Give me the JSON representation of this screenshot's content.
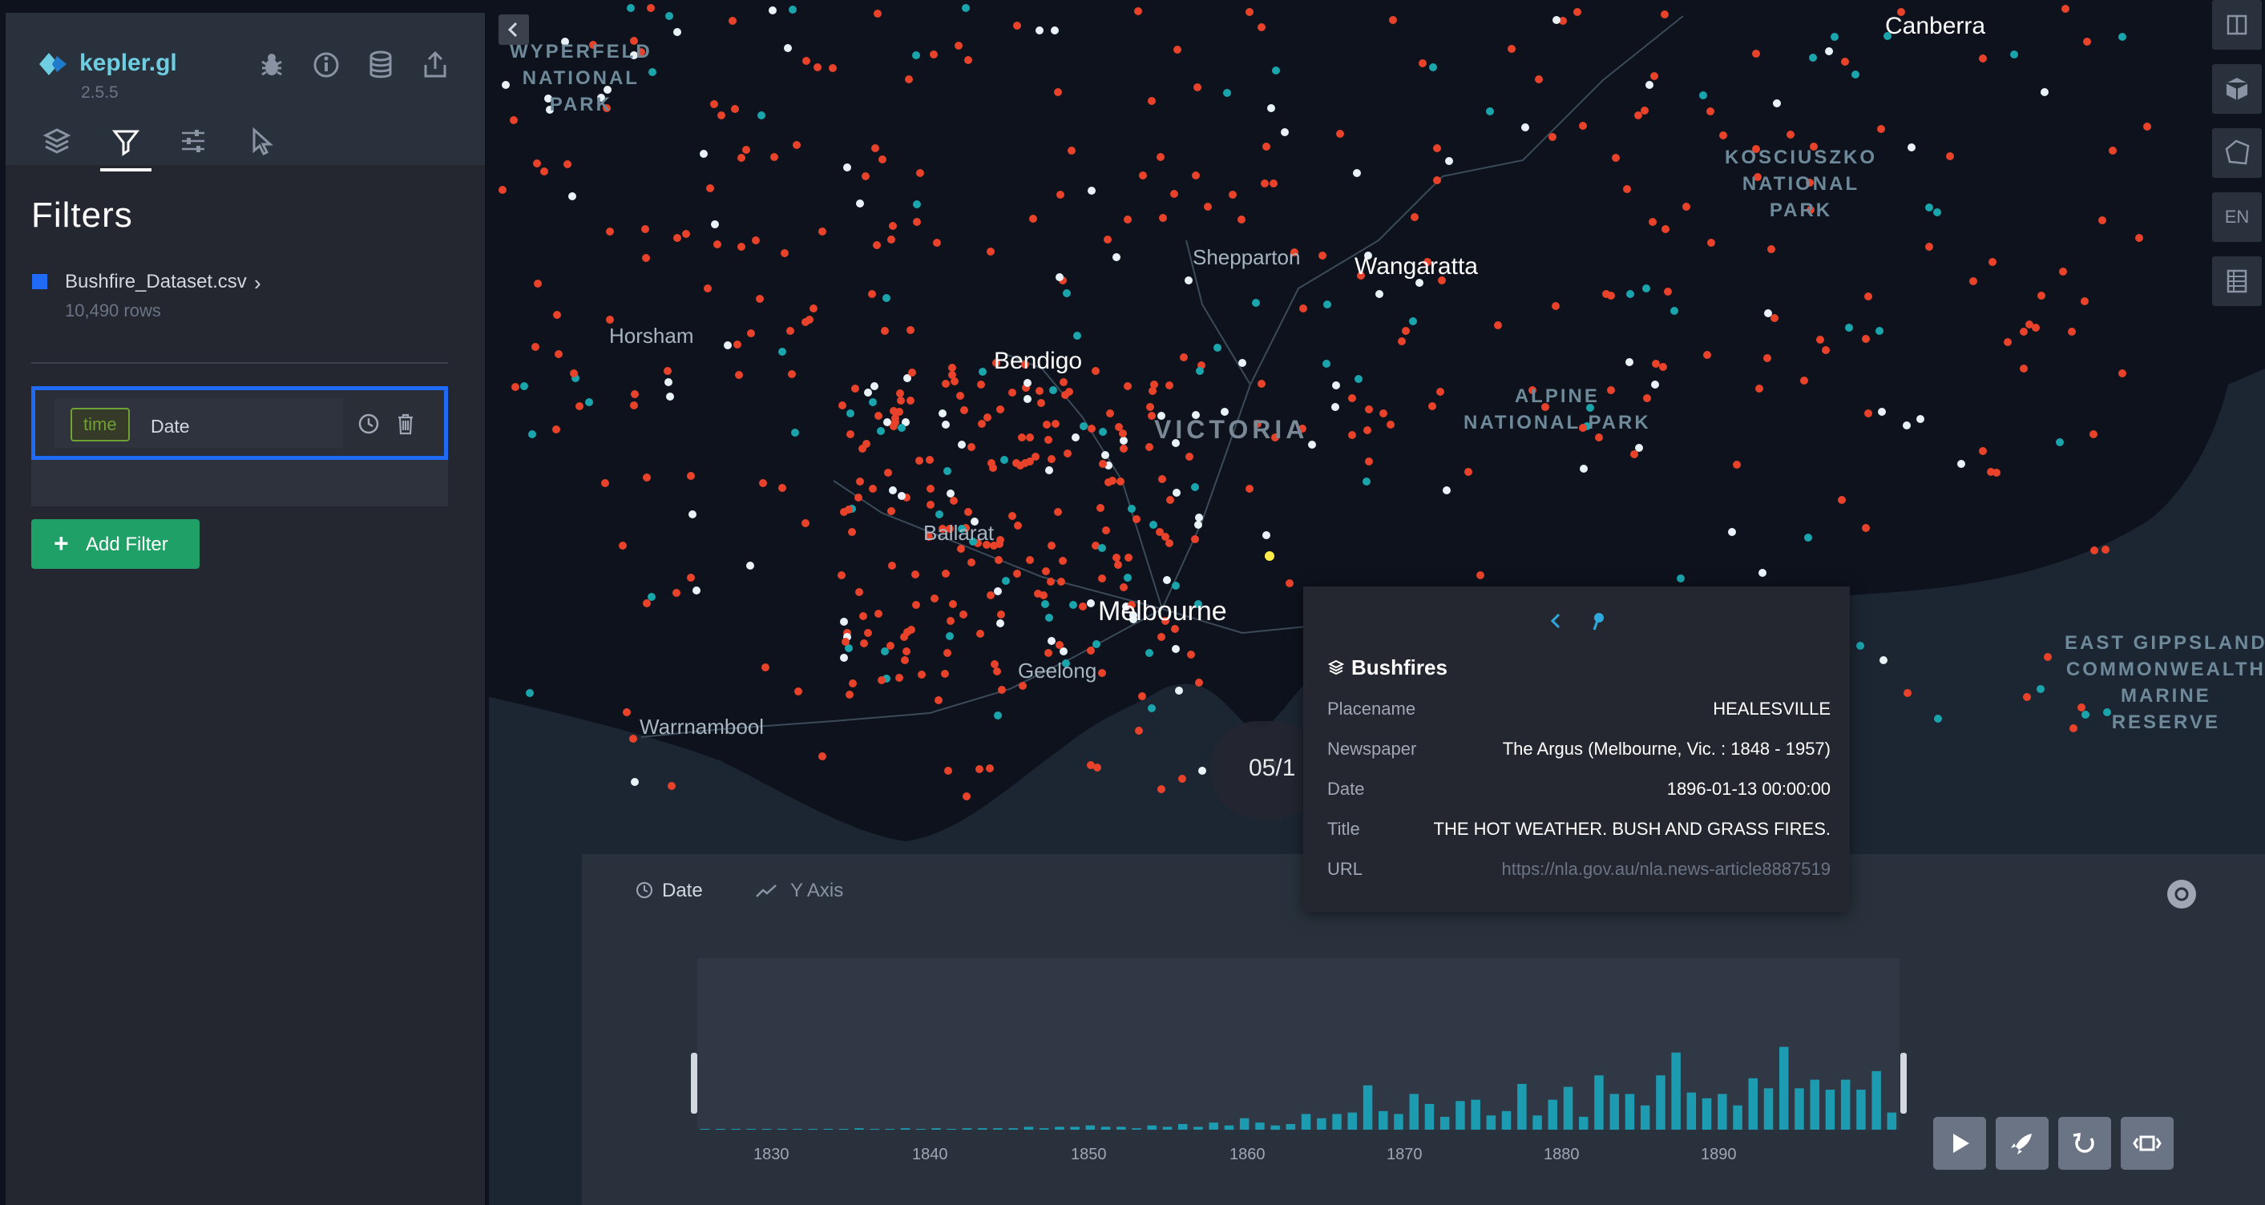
{
  "app": {
    "name": "kepler.gl",
    "version": "2.5.5"
  },
  "sidebar": {
    "tools": [
      "bug-icon",
      "info-icon",
      "database-icon",
      "share-icon"
    ],
    "tabs": [
      "layers",
      "filters",
      "interactions",
      "base-map"
    ],
    "active_tab": "filters",
    "section_title": "Filters",
    "dataset": {
      "name": "Bushfire_Dataset.csv",
      "rows": "10,490 rows",
      "color": "#1f6bf6"
    },
    "filter": {
      "type_badge": "time",
      "field": "Date"
    },
    "add_filter_label": "Add Filter"
  },
  "map": {
    "labels": {
      "canberra": "Canberra",
      "wyperfeld": [
        "WYPERFELD",
        "NATIONAL",
        "PARK"
      ],
      "kosciuszko": [
        "KOSCIUSZKO",
        "NATIONAL",
        "PARK"
      ],
      "alpine": [
        "ALPINE",
        "NATIONAL PARK"
      ],
      "east_gippsland": [
        "EAST GIPPSLAND",
        "COMMONWEALTH",
        "MARINE",
        "RESERVE"
      ],
      "shepparton": "Shepparton",
      "wangaratta": "Wangaratta",
      "horsham": "Horsham",
      "bendigo": "Bendigo",
      "victoria": "VICTORIA",
      "ballarat": "Ballarat",
      "melbourne": "Melbourne",
      "geelong": "Geelong",
      "warrnambool": "Warrnambool"
    },
    "point_colors": {
      "red": "#e8432a",
      "teal": "#1aa5ad",
      "white": "#e9f3f7",
      "yellow": "#ffeb4a"
    }
  },
  "map_controls": {
    "language": "EN"
  },
  "tooltip": {
    "layer": "Bushfires",
    "rows": [
      {
        "key": "Placename",
        "value": "HEALESVILLE"
      },
      {
        "key": "Newspaper",
        "value": "The Argus (Melbourne, Vic. : 1848 - 1957)"
      },
      {
        "key": "Date",
        "value": "1896-01-13 00:00:00"
      },
      {
        "key": "Title",
        "value": "THE HOT WEATHER. BUSH AND GRASS FIRES."
      },
      {
        "key": "URL",
        "value": "https://nla.gov.au/nla.news-article8887519"
      }
    ]
  },
  "time_bubble": "05/1",
  "timeline": {
    "field_tab": "Date",
    "axis_tab": "Y Axis",
    "years": [
      "1830",
      "1840",
      "1850",
      "1860",
      "1870",
      "1880",
      "1890"
    ]
  },
  "chart_data": {
    "type": "bar",
    "title": "",
    "xlabel": "",
    "ylabel": "",
    "x": [
      1827,
      1828,
      1829,
      1830,
      1831,
      1832,
      1833,
      1834,
      1835,
      1836,
      1837,
      1838,
      1839,
      1840,
      1841,
      1842,
      1843,
      1844,
      1845,
      1846,
      1847,
      1848,
      1849,
      1850,
      1851,
      1852,
      1853,
      1854,
      1855,
      1856,
      1857,
      1858,
      1859,
      1860,
      1861,
      1862,
      1863,
      1864,
      1865,
      1866,
      1867,
      1868,
      1869,
      1870,
      1871,
      1872,
      1873,
      1874,
      1875,
      1876,
      1877,
      1878,
      1879,
      1880,
      1881,
      1882,
      1883,
      1884,
      1885,
      1886,
      1887,
      1888,
      1889,
      1890,
      1891,
      1892,
      1893,
      1894,
      1895,
      1896,
      1897,
      1898,
      1899,
      1900,
      1901,
      1902,
      1903,
      1904
    ],
    "values": [
      0,
      0,
      0,
      0,
      0,
      0,
      0,
      0,
      0,
      0,
      1,
      0,
      0,
      1,
      0,
      1,
      0,
      1,
      1,
      1,
      1,
      2,
      1,
      2,
      2,
      3,
      2,
      2,
      1,
      3,
      2,
      4,
      2,
      5,
      3,
      8,
      5,
      3,
      4,
      11,
      8,
      11,
      12,
      31,
      13,
      11,
      25,
      18,
      9,
      20,
      21,
      10,
      13,
      32,
      10,
      21,
      30,
      9,
      38,
      25,
      25,
      17,
      38,
      54,
      26,
      22,
      25,
      17,
      36,
      29,
      58,
      29,
      35,
      28,
      35,
      28,
      41,
      12
    ],
    "series_spikes_note": "",
    "color": "#1d9bb0",
    "ylim": [
      0,
      120
    ]
  }
}
